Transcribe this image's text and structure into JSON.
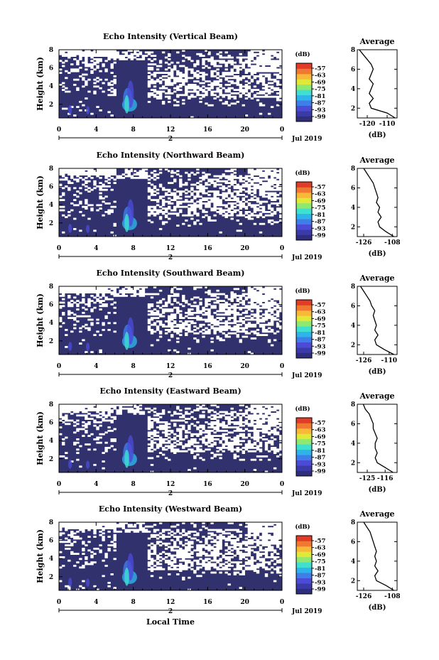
{
  "figure": {
    "xlabel": "Local Time",
    "date_label": "Jul 2019",
    "day_label": "2",
    "avg_title": "Average",
    "avg_xlabel": "(dB)",
    "colorbar_unit": "(dB)",
    "colorbar_ticks": [
      "-57",
      "-63",
      "-69",
      "-75",
      "-81",
      "-87",
      "-93",
      "-99"
    ],
    "colorbar_colors": [
      "#2e2e7a",
      "#3a3aa8",
      "#4b4bd6",
      "#3f7ee8",
      "#2fb4ea",
      "#3fe0d0",
      "#8fe870",
      "#e0e838",
      "#f8b838",
      "#f07830",
      "#e03c28"
    ],
    "background_color": "#31316e"
  },
  "chart_data": [
    {
      "type": "heatmap",
      "title": "Echo Intensity (Vertical Beam)",
      "ylabel": "Height (km)",
      "xlim": [
        0,
        24
      ],
      "ylim": [
        0.5,
        8
      ],
      "xticks": [
        "0",
        "4",
        "8",
        "12",
        "16",
        "20",
        "0"
      ],
      "yticks": [
        "2",
        "4",
        "6",
        "8"
      ],
      "zlim": [
        -99,
        -57
      ],
      "profile": {
        "title": "Average",
        "xlim": [
          -125,
          -105
        ],
        "xticks": [
          "-120",
          "-110"
        ],
        "ylim": [
          1,
          8
        ],
        "yticks": [
          "2",
          "4",
          "6",
          "8"
        ],
        "height": [
          1.0,
          1.5,
          2.0,
          2.5,
          3.0,
          3.5,
          4.0,
          4.5,
          5.0,
          5.5,
          6.0,
          6.5,
          7.0,
          7.5,
          8.0
        ],
        "value": [
          -106,
          -110,
          -118,
          -119,
          -117,
          -119,
          -118,
          -117,
          -119,
          -118,
          -117,
          -118,
          -120,
          -122,
          -124
        ]
      }
    },
    {
      "type": "heatmap",
      "title": "Echo Intensity (Northward Beam)",
      "ylabel": "Height (km)",
      "xlim": [
        0,
        24
      ],
      "ylim": [
        0.5,
        8
      ],
      "xticks": [
        "0",
        "4",
        "8",
        "12",
        "16",
        "20",
        "0"
      ],
      "yticks": [
        "2",
        "4",
        "6",
        "8"
      ],
      "zlim": [
        -99,
        -57
      ],
      "profile": {
        "title": "Average",
        "xlim": [
          -130,
          -105
        ],
        "xticks": [
          "-126",
          "-108"
        ],
        "ylim": [
          1,
          8
        ],
        "yticks": [
          "2",
          "4",
          "6",
          "8"
        ],
        "height": [
          1.0,
          1.5,
          2.0,
          2.5,
          3.0,
          3.5,
          4.0,
          4.5,
          5.0,
          5.5,
          6.0,
          6.5,
          7.0,
          7.5,
          8.0
        ],
        "value": [
          -107,
          -112,
          -116,
          -117,
          -115,
          -117,
          -116,
          -118,
          -117,
          -118,
          -119,
          -120,
          -122,
          -124,
          -126
        ]
      }
    },
    {
      "type": "heatmap",
      "title": "Echo Intensity (Southward Beam)",
      "ylabel": "Height (km)",
      "xlim": [
        0,
        24
      ],
      "ylim": [
        0.5,
        8
      ],
      "xticks": [
        "0",
        "4",
        "8",
        "12",
        "16",
        "20",
        "0"
      ],
      "yticks": [
        "2",
        "4",
        "6",
        "8"
      ],
      "zlim": [
        -99,
        -57
      ],
      "profile": {
        "title": "Average",
        "xlim": [
          -130,
          -105
        ],
        "xticks": [
          "-126",
          "-110"
        ],
        "ylim": [
          1,
          8
        ],
        "yticks": [
          "2",
          "4",
          "6",
          "8"
        ],
        "height": [
          1.0,
          1.5,
          2.0,
          2.5,
          3.0,
          3.5,
          4.0,
          4.5,
          5.0,
          5.5,
          6.0,
          6.5,
          7.0,
          7.5,
          8.0
        ],
        "value": [
          -107,
          -113,
          -118,
          -119,
          -117,
          -119,
          -118,
          -119,
          -120,
          -119,
          -121,
          -122,
          -124,
          -126,
          -128
        ]
      }
    },
    {
      "type": "heatmap",
      "title": "Echo Intensity (Eastward Beam)",
      "ylabel": "Height (km)",
      "xlim": [
        0,
        24
      ],
      "ylim": [
        0.5,
        8
      ],
      "xticks": [
        "0",
        "4",
        "8",
        "12",
        "16",
        "20",
        "0"
      ],
      "yticks": [
        "2",
        "4",
        "6",
        "8"
      ],
      "zlim": [
        -99,
        -57
      ],
      "profile": {
        "title": "Average",
        "xlim": [
          -130,
          -110
        ],
        "xticks": [
          "-125",
          "-116"
        ],
        "ylim": [
          1,
          8
        ],
        "yticks": [
          "2",
          "4",
          "6",
          "8"
        ],
        "height": [
          1.0,
          1.5,
          2.0,
          2.5,
          3.0,
          3.5,
          4.0,
          4.5,
          5.0,
          5.5,
          6.0,
          6.5,
          7.0,
          7.5,
          8.0
        ],
        "value": [
          -112,
          -116,
          -120,
          -121,
          -120,
          -121,
          -121,
          -120,
          -121,
          -122,
          -122,
          -123,
          -124,
          -126,
          -127
        ]
      }
    },
    {
      "type": "heatmap",
      "title": "Echo Intensity (Westward Beam)",
      "ylabel": "Height (km)",
      "xlim": [
        0,
        24
      ],
      "ylim": [
        0.5,
        8
      ],
      "xticks": [
        "0",
        "4",
        "8",
        "12",
        "16",
        "20",
        "0"
      ],
      "yticks": [
        "2",
        "4",
        "6",
        "8"
      ],
      "zlim": [
        -99,
        -57
      ],
      "profile": {
        "title": "Average",
        "xlim": [
          -130,
          -105
        ],
        "xticks": [
          "-126",
          "-108"
        ],
        "ylim": [
          1,
          8
        ],
        "yticks": [
          "2",
          "4",
          "6",
          "8"
        ],
        "height": [
          1.0,
          1.5,
          2.0,
          2.5,
          3.0,
          3.5,
          4.0,
          4.5,
          5.0,
          5.5,
          6.0,
          6.5,
          7.0,
          7.5,
          8.0
        ],
        "value": [
          -107,
          -112,
          -118,
          -119,
          -117,
          -119,
          -118,
          -119,
          -118,
          -119,
          -120,
          -121,
          -122,
          -124,
          -126
        ]
      }
    }
  ]
}
